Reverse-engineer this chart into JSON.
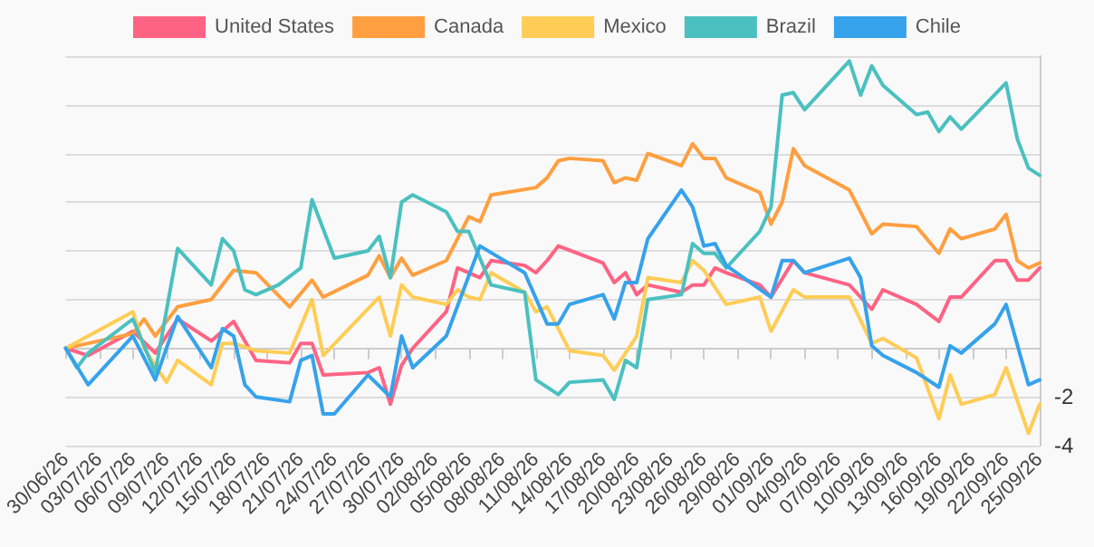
{
  "chart_data": {
    "type": "line",
    "legend": "top",
    "grid": "y",
    "line_style": "solid",
    "xlim": [
      "--06-30",
      "--09-25"
    ],
    "xticks": [
      {
        "value": "--06-30",
        "label": "30/06/26"
      },
      {
        "value": "--07-03",
        "label": "03/07/26"
      },
      {
        "value": "--07-06",
        "label": "06/07/26"
      },
      {
        "value": "--07-09",
        "label": "09/07/26"
      },
      {
        "value": "--07-12",
        "label": "12/07/26"
      },
      {
        "value": "--07-15",
        "label": "15/07/26"
      },
      {
        "value": "--07-18",
        "label": "18/07/26"
      },
      {
        "value": "--07-21",
        "label": "21/07/26"
      },
      {
        "value": "--07-24",
        "label": "24/07/26"
      },
      {
        "value": "--07-27",
        "label": "27/07/26"
      },
      {
        "value": "--07-30",
        "label": "30/07/26"
      },
      {
        "value": "--08-02",
        "label": "02/08/26"
      },
      {
        "value": "--08-05",
        "label": "05/08/26"
      },
      {
        "value": "--08-08",
        "label": "08/08/26"
      },
      {
        "value": "--08-11",
        "label": "11/08/26"
      },
      {
        "value": "--08-14",
        "label": "14/08/26"
      },
      {
        "value": "--08-17",
        "label": "17/08/26"
      },
      {
        "value": "--08-20",
        "label": "20/08/26"
      },
      {
        "value": "--08-23",
        "label": "23/08/26"
      },
      {
        "value": "--08-26",
        "label": "26/08/26"
      },
      {
        "value": "--08-29",
        "label": "29/08/26"
      },
      {
        "value": "--09-01",
        "label": "01/09/26"
      },
      {
        "value": "--09-04",
        "label": "04/09/26"
      },
      {
        "value": "--09-07",
        "label": "07/09/26"
      },
      {
        "value": "--09-10",
        "label": "10/09/26"
      },
      {
        "value": "--09-13",
        "label": "13/09/26"
      },
      {
        "value": "--09-16",
        "label": "16/09/26"
      },
      {
        "value": "--09-19",
        "label": "19/09/26"
      },
      {
        "value": "--09-22",
        "label": "22/09/26"
      },
      {
        "value": "--09-25",
        "label": "25/09/26"
      }
    ],
    "ylim": [
      -4,
      12
    ],
    "yticks": [
      -4,
      -2,
      {
        "value": 0,
        "label": null
      },
      {
        "value": 2,
        "label": null
      },
      {
        "value": 4,
        "label": null
      },
      {
        "value": 6,
        "label": null
      },
      {
        "value": 8,
        "label": null
      },
      {
        "value": 10,
        "label": null
      },
      {
        "value": 12,
        "label": null
      }
    ],
    "series": [
      {
        "name": "United States",
        "color": "#ff6384",
        "x": [
          "--06-30",
          "--07-02",
          "--07-06",
          "--07-08",
          "--07-10",
          "--07-13",
          "--07-15",
          "--07-17",
          "--07-20",
          "--07-21",
          "--07-22",
          "--07-23",
          "--07-27",
          "--07-28",
          "--07-29",
          "--07-30",
          "--07-31",
          "--08-03",
          "--08-04",
          "--08-06",
          "--08-07",
          "--08-10",
          "--08-11",
          "--08-12",
          "--08-13",
          "--08-17",
          "--08-18",
          "--08-19",
          "--08-20",
          "--08-21",
          "--08-24",
          "--08-25",
          "--08-26",
          "--08-27",
          "--08-28",
          "--08-31",
          "--09-01",
          "--09-03",
          "--09-04",
          "--09-08",
          "--09-10",
          "--09-11",
          "--09-14",
          "--09-16",
          "--09-17",
          "--09-18",
          "--09-21",
          "--09-22",
          "--09-23",
          "--09-24",
          "--09-25"
        ],
        "values": [
          0,
          -0.3,
          0.7,
          -0.2,
          1.2,
          0.3,
          1.1,
          -0.5,
          -0.6,
          0.2,
          0.2,
          -1.1,
          -1.0,
          -0.8,
          -2.3,
          -0.7,
          0,
          1.5,
          3.3,
          2.9,
          3.6,
          3.4,
          3.1,
          3.6,
          4.2,
          3.5,
          2.7,
          3.1,
          2.2,
          2.6,
          2.3,
          2.6,
          2.6,
          3.3,
          3.1,
          2.6,
          2.1,
          3.6,
          3.1,
          2.6,
          1.6,
          2.4,
          1.8,
          1.1,
          2.1,
          2.1,
          3.6,
          3.6,
          2.8,
          2.8,
          3.3
        ]
      },
      {
        "name": "Canada",
        "color": "#ff9f40",
        "x": [
          "--06-30",
          "--07-02",
          "--07-06",
          "--07-07",
          "--07-08",
          "--07-10",
          "--07-13",
          "--07-15",
          "--07-17",
          "--07-20",
          "--07-22",
          "--07-23",
          "--07-27",
          "--07-28",
          "--07-29",
          "--07-30",
          "--07-31",
          "--08-03",
          "--08-05",
          "--08-06",
          "--08-07",
          "--08-11",
          "--08-12",
          "--08-13",
          "--08-14",
          "--08-17",
          "--08-18",
          "--08-19",
          "--08-20",
          "--08-21",
          "--08-24",
          "--08-25",
          "--08-26",
          "--08-27",
          "--08-28",
          "--08-31",
          "--09-01",
          "--09-02",
          "--09-03",
          "--09-04",
          "--09-08",
          "--09-10",
          "--09-11",
          "--09-14",
          "--09-16",
          "--09-17",
          "--09-18",
          "--09-21",
          "--09-22",
          "--09-23",
          "--09-24",
          "--09-25"
        ],
        "values": [
          0,
          0.2,
          0.6,
          1.2,
          0.5,
          1.7,
          2.0,
          3.2,
          3.1,
          1.7,
          2.8,
          2.1,
          3.0,
          3.8,
          2.9,
          3.7,
          3.0,
          3.6,
          5.4,
          5.2,
          6.3,
          6.6,
          7.0,
          7.7,
          7.8,
          7.7,
          6.8,
          7.0,
          6.9,
          8.0,
          7.5,
          8.4,
          7.8,
          7.8,
          7.0,
          6.4,
          5.1,
          6.0,
          8.2,
          7.5,
          6.5,
          4.7,
          5.1,
          5.0,
          3.9,
          4.9,
          4.5,
          4.9,
          5.5,
          3.6,
          3.3,
          3.5
        ]
      },
      {
        "name": "Mexico",
        "color": "#ffcd56",
        "x": [
          "--06-30",
          "--07-06",
          "--07-07",
          "--07-09",
          "--07-10",
          "--07-13",
          "--07-14",
          "--07-15",
          "--07-17",
          "--07-20",
          "--07-22",
          "--07-23",
          "--07-28",
          "--07-29",
          "--07-30",
          "--07-31",
          "--08-03",
          "--08-04",
          "--08-05",
          "--08-06",
          "--08-07",
          "--08-10",
          "--08-11",
          "--08-12",
          "--08-14",
          "--08-17",
          "--08-18",
          "--08-20",
          "--08-21",
          "--08-24",
          "--08-25",
          "--08-26",
          "--08-28",
          "--08-31",
          "--09-01",
          "--09-03",
          "--09-04",
          "--09-08",
          "--09-10",
          "--09-11",
          "--09-14",
          "--09-16",
          "--09-17",
          "--09-18",
          "--09-21",
          "--09-22",
          "--09-24",
          "--09-25"
        ],
        "values": [
          0,
          1.5,
          0,
          -1.4,
          -0.5,
          -1.5,
          0.2,
          0.2,
          -0.1,
          -0.2,
          2.0,
          -0.3,
          2.1,
          0.5,
          2.6,
          2.1,
          1.8,
          2.4,
          2.1,
          2.0,
          3.1,
          2.3,
          1.5,
          1.7,
          -0.1,
          -0.3,
          -0.9,
          0.5,
          2.9,
          2.7,
          3.6,
          3.2,
          1.8,
          2.1,
          0.7,
          2.4,
          2.1,
          2.1,
          0.2,
          0.4,
          -0.4,
          -2.9,
          -1.1,
          -2.3,
          -1.9,
          -0.8,
          -3.5,
          -2.3
        ]
      },
      {
        "name": "Brazil",
        "color": "#4bc0c0",
        "x": [
          "--06-30",
          "--07-01",
          "--07-02",
          "--07-06",
          "--07-08",
          "--07-10",
          "--07-13",
          "--07-14",
          "--07-15",
          "--07-16",
          "--07-17",
          "--07-19",
          "--07-21",
          "--07-22",
          "--07-24",
          "--07-27",
          "--07-28",
          "--07-29",
          "--07-30",
          "--07-31",
          "--08-03",
          "--08-04",
          "--08-05",
          "--08-06",
          "--08-07",
          "--08-10",
          "--08-11",
          "--08-12",
          "--08-13",
          "--08-14",
          "--08-17",
          "--08-18",
          "--08-19",
          "--08-20",
          "--08-21",
          "--08-24",
          "--08-25",
          "--08-26",
          "--08-27",
          "--08-28",
          "--08-31",
          "--09-01",
          "--09-02",
          "--09-03",
          "--09-04",
          "--09-08",
          "--09-09",
          "--09-10",
          "--09-11",
          "--09-14",
          "--09-15",
          "--09-16",
          "--09-17",
          "--09-18",
          "--09-22",
          "--09-23",
          "--09-24",
          "--09-25"
        ],
        "values": [
          0,
          -0.8,
          -0.2,
          1.2,
          -1.0,
          4.1,
          2.6,
          4.5,
          4.0,
          2.4,
          2.2,
          2.6,
          3.3,
          6.1,
          3.7,
          4.0,
          4.6,
          2.9,
          6.0,
          6.3,
          5.6,
          4.8,
          4.8,
          3.7,
          2.6,
          2.3,
          -1.3,
          -1.6,
          -1.9,
          -1.4,
          -1.3,
          -2.1,
          -0.5,
          -0.8,
          2.0,
          2.2,
          4.3,
          3.9,
          3.9,
          3.3,
          4.8,
          5.8,
          10.4,
          10.5,
          9.8,
          11.8,
          10.4,
          11.6,
          10.8,
          9.6,
          9.7,
          8.9,
          9.5,
          9.0,
          10.9,
          8.6,
          7.4,
          7.1
        ]
      },
      {
        "name": "Chile",
        "color": "#36a2eb",
        "x": [
          "--06-30",
          "--07-02",
          "--07-06",
          "--07-08",
          "--07-10",
          "--07-13",
          "--07-14",
          "--07-15",
          "--07-16",
          "--07-17",
          "--07-20",
          "--07-21",
          "--07-22",
          "--07-23",
          "--07-24",
          "--07-27",
          "--07-29",
          "--07-30",
          "--07-31",
          "--08-03",
          "--08-06",
          "--08-10",
          "--08-12",
          "--08-13",
          "--08-14",
          "--08-17",
          "--08-18",
          "--08-19",
          "--08-20",
          "--08-21",
          "--08-24",
          "--08-25",
          "--08-26",
          "--08-27",
          "--08-28",
          "--09-01",
          "--09-02",
          "--09-03",
          "--09-04",
          "--09-08",
          "--09-09",
          "--09-10",
          "--09-11",
          "--09-14",
          "--09-16",
          "--09-17",
          "--09-18",
          "--09-21",
          "--09-22",
          "--09-24",
          "--09-25"
        ],
        "values": [
          0,
          -1.5,
          0.5,
          -1.3,
          1.3,
          -0.8,
          0.8,
          0.5,
          -1.5,
          -2.0,
          -2.2,
          -0.5,
          -0.3,
          -2.7,
          -2.7,
          -1.1,
          -2.0,
          0.5,
          -0.8,
          0.5,
          4.2,
          3.1,
          1.0,
          1.0,
          1.8,
          2.2,
          1.2,
          2.7,
          2.7,
          4.5,
          6.5,
          5.8,
          4.2,
          4.3,
          3.4,
          2.1,
          3.6,
          3.6,
          3.1,
          3.7,
          2.9,
          0.1,
          -0.3,
          -1.0,
          -1.6,
          0.1,
          -0.2,
          1.0,
          1.8,
          -1.5,
          -1.3
        ]
      }
    ]
  }
}
